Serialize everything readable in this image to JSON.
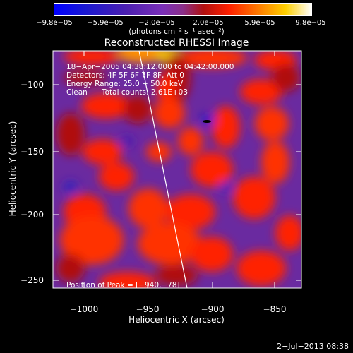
{
  "colorbar": {
    "ticks": [
      "−9.8e−05",
      "−5.9e−05",
      "−2.0e−05",
      "2.0e−05",
      "5.9e−05",
      "9.8e−05"
    ],
    "unit_label": "(photons cm⁻² s⁻¹ asec⁻²)"
  },
  "title": "Reconstructed RHESSI Image",
  "annotations": {
    "time_range": "18−Apr−2005 04:38:12.000 to 04:42:00.000",
    "detectors": "Detectors: 4F 5F 6F 7F 8F, Att 0",
    "energy_range": "Energy Range: 25.0 − 50.0 keV",
    "method": "Clean",
    "total_counts": "Total counts: 2.61E+03",
    "peak": "Position of Peak = [−940,−78]"
  },
  "axes": {
    "xlabel": "Heliocentric X (arcsec)",
    "ylabel": "Heliocentric Y (arcsec)",
    "xticks": [
      "−1000",
      "−950",
      "−900",
      "−850"
    ],
    "yticks": [
      "−100",
      "−150",
      "−200",
      "−250"
    ],
    "xlim": [
      -1020,
      -830
    ],
    "ylim": [
      -265,
      -72
    ]
  },
  "footer": {
    "date": "2−Jul−2013 08:38"
  },
  "colors": {
    "background": "#000000",
    "limb_line": "#ffffff",
    "colormap": [
      "#0000ff",
      "#4b1fb0",
      "#7a2fb8",
      "#8a2f8a",
      "#b01010",
      "#ff2000",
      "#ff8000",
      "#ffd000",
      "#ffffff"
    ]
  }
}
